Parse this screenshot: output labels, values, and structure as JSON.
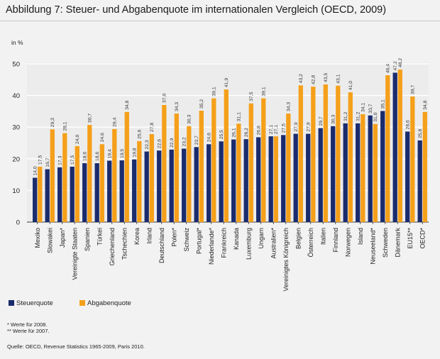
{
  "title": "Abbildung 7:   Steuer- und Abgabenquote im internationalen Vergleich (OECD, 2009)",
  "footnotes": {
    "note1": "* Werte für 2008.",
    "note2": "** Werte für 2007.",
    "source": "Quelle:  OECD, Revenue Statistics 1965-2009, Paris 2010."
  },
  "colors": {
    "steuerquote": "#1a2b6d",
    "abgabenquote": "#f5a01a",
    "background": "#f2f2f2",
    "grid": "#ffffff"
  },
  "chart_data": {
    "type": "bar",
    "ylabel": "in %",
    "ylim": [
      0,
      50
    ],
    "yticks": [
      0,
      10,
      20,
      30,
      40,
      50
    ],
    "grid": true,
    "legend_position": "bottom-left",
    "categories": [
      "Mexiko",
      "Slowakei",
      "Japan*",
      "Vereinigte Staaten",
      "Spanien",
      "Türkei",
      "Griechenland",
      "Tschechien",
      "Korea",
      "Irland",
      "Deutschland",
      "Polen*",
      "Schweiz",
      "Portugal*",
      "Niederlande*",
      "Frankreich",
      "Kanada",
      "Luxemburg",
      "Ungarn",
      "Australien*",
      "Vereinigtes Königreich",
      "Belgien",
      "Österreich",
      "Italien",
      "Finnland",
      "Norwegen",
      "Island",
      "Neuseeland*",
      "Schweden",
      "Dänemark",
      "EU15**",
      "OECD*"
    ],
    "series": [
      {
        "name": "Steuerquote",
        "values": [
          14.0,
          16.7,
          17.3,
          17.5,
          18.6,
          18.6,
          19.4,
          19.5,
          19.8,
          22.3,
          22.6,
          22.9,
          23.2,
          23.7,
          24.6,
          25.5,
          26.1,
          26.2,
          26.8,
          27.1,
          27.5,
          27.9,
          27.9,
          29.7,
          30.3,
          31.2,
          31.2,
          33.7,
          35.1,
          47.2,
          28.6,
          25.8
        ],
        "labels": [
          "14,0",
          "16,7",
          "17,3",
          "17,5",
          "18,6",
          "18,6",
          "19,4",
          "19,5",
          "19,8",
          "22,3",
          "22,6",
          "22,9",
          "23,2",
          "23,7",
          "24,6",
          "25,5",
          "26,1",
          "26,2",
          "26,8",
          "27,1",
          "27,5",
          "27,9",
          "27,9",
          "29,7",
          "30,3",
          "31,2",
          "31,2",
          "33,7",
          "35,1",
          "47,2",
          "28,6",
          "25,8"
        ]
      },
      {
        "name": "Abgabenquote",
        "values": [
          17.5,
          29.3,
          28.1,
          24.0,
          30.7,
          24.6,
          29.4,
          34.8,
          25.6,
          27.8,
          37.0,
          34.3,
          30.3,
          35.2,
          39.1,
          41.9,
          31.1,
          37.5,
          39.1,
          27.1,
          34.3,
          43.2,
          42.8,
          43.5,
          43.1,
          41.0,
          34.1,
          31.0,
          46.4,
          48.2,
          39.7,
          34.8
        ],
        "labels": [
          "17,5",
          "29,3",
          "28,1",
          "24,0",
          "30,7",
          "24,6",
          "29,4",
          "34,8",
          "25,6",
          "27,8",
          "37,0",
          "34,3",
          "30,3",
          "35,2",
          "39,1",
          "41,9",
          "31,1",
          "37,5",
          "39,1",
          "27,1",
          "34,3",
          "43,2",
          "42,8",
          "43,5",
          "43,1",
          "41,0",
          "34,1",
          "31,0",
          "46,4",
          "48,2",
          "39,7",
          "34,8"
        ]
      }
    ]
  }
}
